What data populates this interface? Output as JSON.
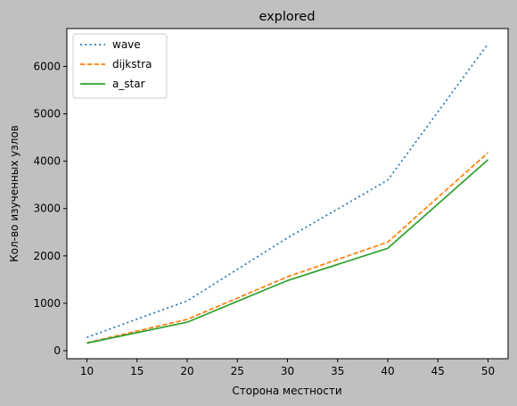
{
  "chart_data": {
    "type": "line",
    "title": "explored",
    "xlabel": "Сторона местности",
    "ylabel": "Кол-во изученных узлов",
    "x": [
      10,
      20,
      30,
      40,
      50
    ],
    "xlim": [
      8,
      52
    ],
    "ylim": [
      -170,
      6800
    ],
    "xticks": [
      10,
      15,
      20,
      25,
      30,
      35,
      40,
      45,
      50
    ],
    "yticks": [
      0,
      1000,
      2000,
      3000,
      4000,
      5000,
      6000
    ],
    "grid": false,
    "legend_position": "top-left",
    "series": [
      {
        "name": "wave",
        "values": [
          280,
          1050,
          2380,
          3600,
          6480
        ],
        "color": "#1f77b4",
        "style": "dotted"
      },
      {
        "name": "dijkstra",
        "values": [
          165,
          660,
          1560,
          2290,
          4180
        ],
        "color": "#ff7f0e",
        "style": "dashed"
      },
      {
        "name": "a_star",
        "values": [
          160,
          600,
          1480,
          2160,
          4030
        ],
        "color": "#2ca02c",
        "style": "solid"
      }
    ]
  }
}
